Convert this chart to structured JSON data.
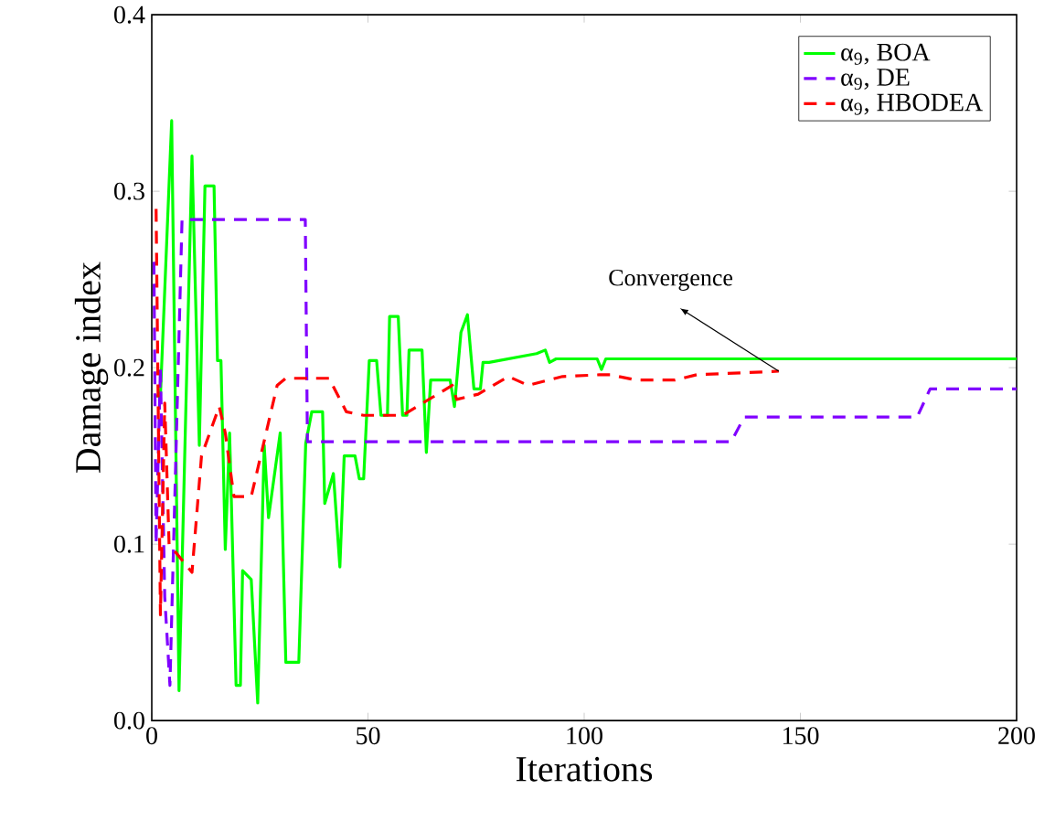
{
  "chart_data": {
    "type": "line",
    "xlabel": "Iterations",
    "ylabel": "Damage index",
    "xlim": [
      0,
      200
    ],
    "ylim": [
      0,
      0.4
    ],
    "xticks": [
      0,
      50,
      100,
      150,
      200
    ],
    "yticks": [
      {
        "value": 0,
        "label": "0.0"
      },
      {
        "value": 0.1,
        "label": "0.1"
      },
      {
        "value": 0.2,
        "label": "0.2"
      },
      {
        "value": 0.3,
        "label": "0.3"
      },
      {
        "value": 0.4,
        "label": "0.4"
      }
    ],
    "grid": false,
    "legend": "top right",
    "marker": "none",
    "series": [
      {
        "name": "α$_{9}$, BOA",
        "color": "#00ff00",
        "line_style": "solid",
        "x": [
          1,
          2,
          4.6,
          6.3,
          9.3,
          11,
          12.3,
          14.4,
          15.2,
          16,
          17,
          18,
          19.5,
          20.5,
          21,
          23,
          24.5,
          26,
          27,
          29.7,
          31,
          34,
          35.6,
          37,
          39.5,
          40,
          42,
          43.5,
          44.5,
          47,
          48,
          49,
          50.3,
          52,
          53,
          54.5,
          55,
          57,
          58,
          59,
          59.5,
          62.5,
          63.5,
          64.5,
          69,
          70,
          71.5,
          73,
          74.5,
          76,
          76.6,
          78,
          89,
          91,
          92,
          93.5,
          103,
          104,
          105,
          200
        ],
        "values": [
          0.184,
          0.184,
          0.34,
          0.017,
          0.32,
          0.156,
          0.303,
          0.303,
          0.204,
          0.204,
          0.097,
          0.163,
          0.02,
          0.02,
          0.085,
          0.08,
          0.01,
          0.156,
          0.115,
          0.163,
          0.033,
          0.033,
          0.157,
          0.175,
          0.175,
          0.123,
          0.14,
          0.087,
          0.15,
          0.15,
          0.137,
          0.137,
          0.204,
          0.204,
          0.173,
          0.173,
          0.229,
          0.229,
          0.173,
          0.173,
          0.21,
          0.21,
          0.152,
          0.193,
          0.193,
          0.178,
          0.22,
          0.23,
          0.188,
          0.188,
          0.203,
          0.203,
          0.208,
          0.21,
          0.203,
          0.205,
          0.205,
          0.199,
          0.205,
          0.205
        ]
      },
      {
        "name": "α$_{9}$, DE",
        "color": "#8000ff",
        "line_style": "dashed",
        "x": [
          0.5,
          1,
          2,
          3,
          4.2,
          7,
          35.5,
          36,
          134,
          137,
          177,
          180,
          200
        ],
        "values": [
          0.26,
          0.1,
          0.2,
          0.07,
          0.02,
          0.284,
          0.284,
          0.158,
          0.158,
          0.172,
          0.172,
          0.188,
          0.188
        ]
      },
      {
        "name": "α$_{9}$, HBODEA",
        "color": "#ff0000",
        "line_style": "dashed",
        "x": [
          1,
          2,
          3,
          4,
          9.3,
          11.5,
          15.6,
          17,
          19,
          23,
          29,
          31,
          41,
          45,
          49,
          54,
          58,
          69.5,
          70.5,
          75.5,
          82.5,
          87,
          95,
          103.5,
          106,
          112,
          121,
          126,
          145
        ],
        "values": [
          0.29,
          0.06,
          0.18,
          0.1,
          0.084,
          0.15,
          0.178,
          0.163,
          0.127,
          0.127,
          0.19,
          0.194,
          0.194,
          0.175,
          0.173,
          0.173,
          0.173,
          0.19,
          0.182,
          0.185,
          0.195,
          0.19,
          0.195,
          0.196,
          0.196,
          0.193,
          0.193,
          0.196,
          0.198
        ]
      }
    ],
    "annotations": [
      "Convergence"
    ]
  }
}
